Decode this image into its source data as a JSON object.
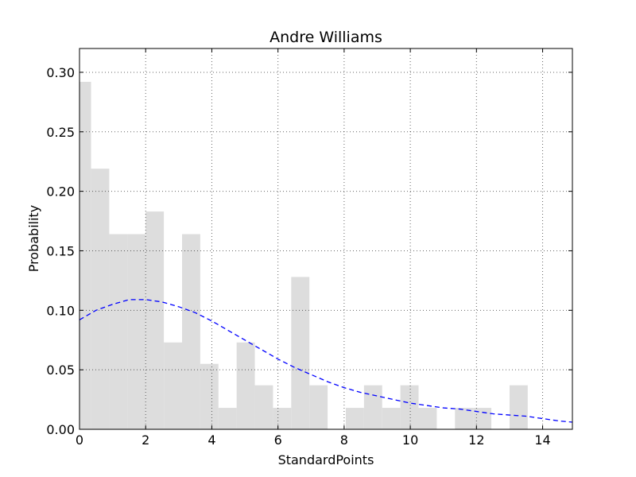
{
  "chart_data": {
    "type": "bar",
    "title": "Andre Williams",
    "xlabel": "StandardPoints",
    "ylabel": "Probability",
    "xlim": [
      0,
      14.9
    ],
    "ylim": [
      0,
      0.32
    ],
    "grid": true,
    "xticks": [
      0,
      2,
      4,
      6,
      8,
      10,
      12,
      14
    ],
    "xtick_labels": [
      "0",
      "2",
      "4",
      "6",
      "8",
      "10",
      "12",
      "14"
    ],
    "yticks": [
      0.0,
      0.05,
      0.1,
      0.15,
      0.2,
      0.25,
      0.3
    ],
    "ytick_labels": [
      "0.00",
      "0.05",
      "0.10",
      "0.15",
      "0.20",
      "0.25",
      "0.30"
    ],
    "bar_color": "#dddddd",
    "curve_color": "#0000ff",
    "histogram": [
      {
        "x0": 0.0,
        "x1": 0.35,
        "value": 0.292
      },
      {
        "x0": 0.35,
        "x1": 0.9,
        "value": 0.219
      },
      {
        "x0": 0.9,
        "x1": 1.45,
        "value": 0.164
      },
      {
        "x0": 1.45,
        "x1": 2.0,
        "value": 0.164
      },
      {
        "x0": 2.0,
        "x1": 2.55,
        "value": 0.183
      },
      {
        "x0": 2.55,
        "x1": 3.1,
        "value": 0.073
      },
      {
        "x0": 3.1,
        "x1": 3.65,
        "value": 0.164
      },
      {
        "x0": 3.65,
        "x1": 4.2,
        "value": 0.055
      },
      {
        "x0": 4.2,
        "x1": 4.75,
        "value": 0.018
      },
      {
        "x0": 4.75,
        "x1": 5.3,
        "value": 0.073
      },
      {
        "x0": 5.3,
        "x1": 5.85,
        "value": 0.037
      },
      {
        "x0": 5.85,
        "x1": 6.4,
        "value": 0.018
      },
      {
        "x0": 6.4,
        "x1": 6.95,
        "value": 0.128
      },
      {
        "x0": 6.95,
        "x1": 7.5,
        "value": 0.037
      },
      {
        "x0": 8.05,
        "x1": 8.6,
        "value": 0.018
      },
      {
        "x0": 8.6,
        "x1": 9.15,
        "value": 0.037
      },
      {
        "x0": 9.15,
        "x1": 9.7,
        "value": 0.018
      },
      {
        "x0": 9.7,
        "x1": 10.25,
        "value": 0.037
      },
      {
        "x0": 10.25,
        "x1": 10.8,
        "value": 0.018
      },
      {
        "x0": 11.35,
        "x1": 11.9,
        "value": 0.018
      },
      {
        "x0": 11.9,
        "x1": 12.45,
        "value": 0.018
      },
      {
        "x0": 13.0,
        "x1": 13.55,
        "value": 0.037
      }
    ],
    "fit_curve": {
      "x": [
        0,
        0.5,
        1,
        1.5,
        2,
        2.5,
        3,
        3.5,
        4,
        4.5,
        5,
        5.5,
        6,
        6.5,
        7,
        7.5,
        8,
        8.5,
        9,
        9.5,
        10,
        10.5,
        11,
        11.5,
        12,
        12.5,
        13,
        13.5,
        14,
        14.5,
        14.9
      ],
      "y": [
        0.092,
        0.1,
        0.105,
        0.109,
        0.109,
        0.107,
        0.103,
        0.098,
        0.091,
        0.083,
        0.075,
        0.067,
        0.059,
        0.052,
        0.046,
        0.04,
        0.035,
        0.031,
        0.028,
        0.025,
        0.022,
        0.02,
        0.018,
        0.017,
        0.015,
        0.013,
        0.012,
        0.011,
        0.009,
        0.007,
        0.006
      ]
    }
  }
}
